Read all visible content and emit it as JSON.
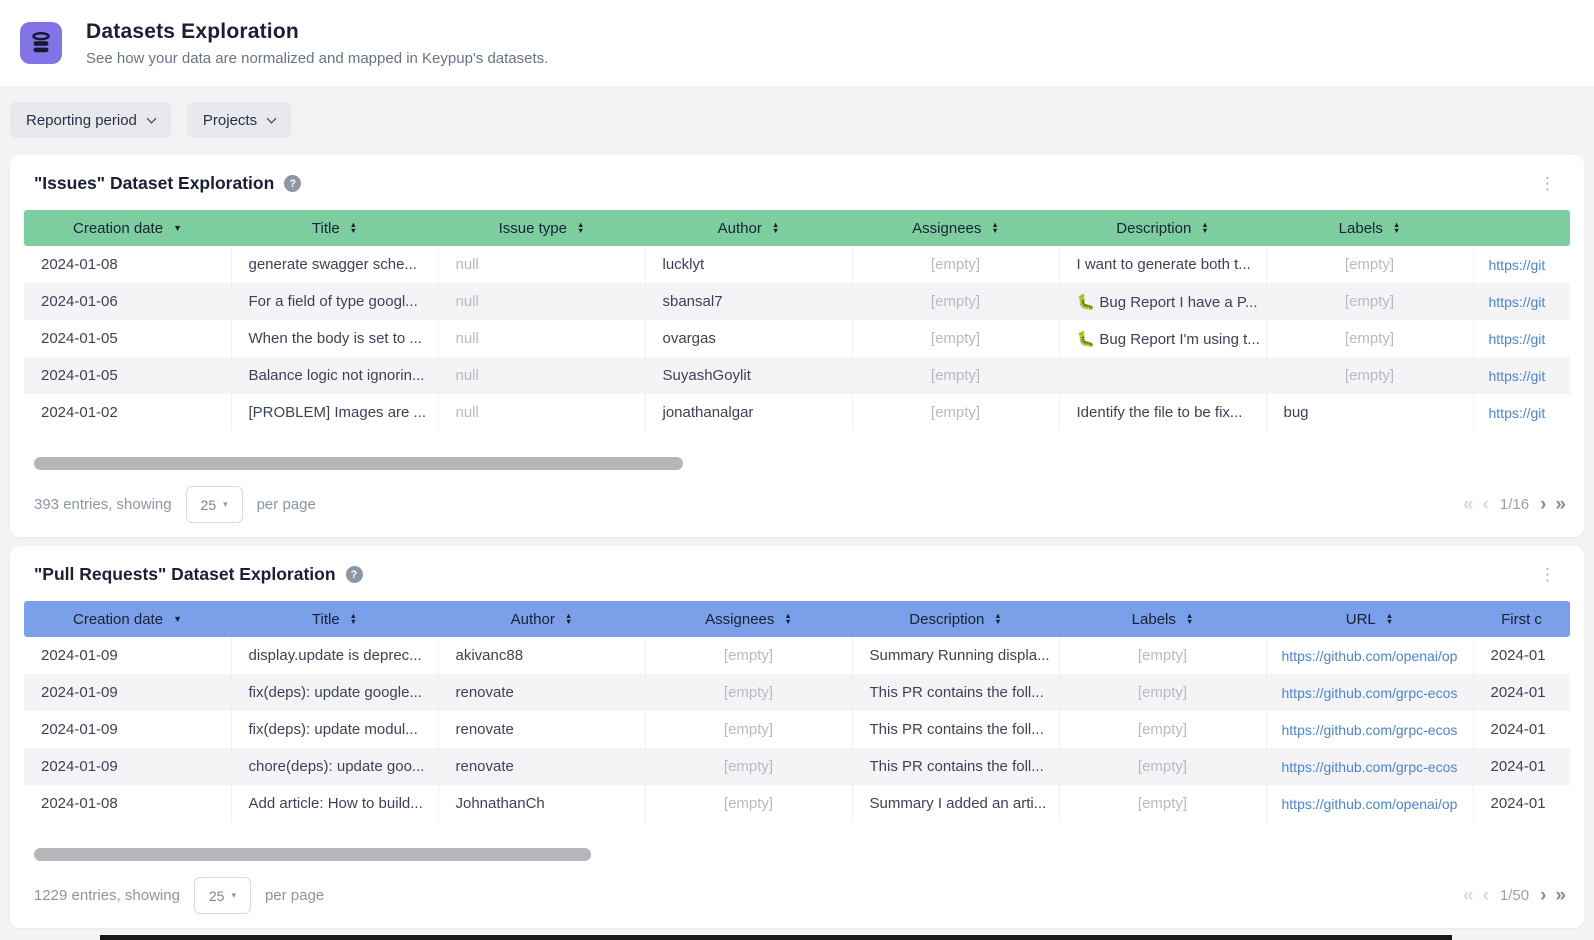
{
  "header": {
    "title": "Datasets Exploration",
    "subtitle": "See how your data are normalized and mapped in Keypup's datasets."
  },
  "filters": [
    {
      "label": "Reporting period"
    },
    {
      "label": "Projects"
    }
  ],
  "colors": {
    "app_icon_bg": "#8273e8",
    "issues_header": "#7dce9f",
    "pull_requests_header": "#7b9fe8",
    "link": "#4a84d8"
  },
  "icons": {
    "app": "database-icon",
    "help": "?",
    "kebab": "⋮",
    "caret_down": "▾",
    "sort_asc": "▲",
    "sort_desc": "▼",
    "first_page": "«",
    "prev_page": "‹",
    "next_page": "›",
    "last_page": "»"
  },
  "tables": [
    {
      "title": "\"Issues\" Dataset Exploration",
      "accent": "#7dce9f",
      "scrollbar_width_pct": 42.5,
      "columns": [
        {
          "label": "Creation date",
          "sort": "desc"
        },
        {
          "label": "Title",
          "sort": "both"
        },
        {
          "label": "Issue type",
          "sort": "both"
        },
        {
          "label": "Author",
          "sort": "both"
        },
        {
          "label": "Assignees",
          "sort": "both"
        },
        {
          "label": "Description",
          "sort": "both"
        },
        {
          "label": "Labels",
          "sort": "both"
        },
        {
          "label": "",
          "sort": "none"
        }
      ],
      "rows": [
        [
          {
            "text": "2024-01-08"
          },
          {
            "text": "generate swagger sche..."
          },
          {
            "text": "null",
            "muted": true
          },
          {
            "text": "lucklyt"
          },
          {
            "text": "[empty]",
            "muted": true,
            "center": true
          },
          {
            "text": "I want to generate both t..."
          },
          {
            "text": "[empty]",
            "muted": true,
            "center": true
          },
          {
            "text": "https://git",
            "link": true
          }
        ],
        [
          {
            "text": "2024-01-06"
          },
          {
            "text": "For a field of type googl..."
          },
          {
            "text": "null",
            "muted": true
          },
          {
            "text": "sbansal7"
          },
          {
            "text": "[empty]",
            "muted": true,
            "center": true
          },
          {
            "text": "🐛 Bug Report I have a P..."
          },
          {
            "text": "[empty]",
            "muted": true,
            "center": true
          },
          {
            "text": "https://git",
            "link": true
          }
        ],
        [
          {
            "text": "2024-01-05"
          },
          {
            "text": "When the body is set to ..."
          },
          {
            "text": "null",
            "muted": true
          },
          {
            "text": "ovargas"
          },
          {
            "text": "[empty]",
            "muted": true,
            "center": true
          },
          {
            "text": "🐛 Bug Report I'm using t..."
          },
          {
            "text": "[empty]",
            "muted": true,
            "center": true
          },
          {
            "text": "https://git",
            "link": true
          }
        ],
        [
          {
            "text": "2024-01-05"
          },
          {
            "text": "Balance logic not ignorin..."
          },
          {
            "text": "null",
            "muted": true
          },
          {
            "text": "SuyashGoylit"
          },
          {
            "text": "[empty]",
            "muted": true,
            "center": true
          },
          {
            "text": ""
          },
          {
            "text": "[empty]",
            "muted": true,
            "center": true
          },
          {
            "text": "https://git",
            "link": true
          }
        ],
        [
          {
            "text": "2024-01-02"
          },
          {
            "text": "[PROBLEM] Images are ..."
          },
          {
            "text": "null",
            "muted": true
          },
          {
            "text": "jonathanalgar"
          },
          {
            "text": "[empty]",
            "muted": true,
            "center": true
          },
          {
            "text": "Identify the file to be fix..."
          },
          {
            "text": "bug"
          },
          {
            "text": "https://git",
            "link": true
          }
        ]
      ],
      "footer": {
        "entries": "393 entries, showing",
        "page_size": "25",
        "suffix": "per page",
        "page_indicator": "1/16"
      }
    },
    {
      "title": "\"Pull Requests\" Dataset Exploration",
      "accent": "#7b9fe8",
      "scrollbar_width_pct": 36.5,
      "columns": [
        {
          "label": "Creation date",
          "sort": "desc"
        },
        {
          "label": "Title",
          "sort": "both"
        },
        {
          "label": "Author",
          "sort": "both"
        },
        {
          "label": "Assignees",
          "sort": "both"
        },
        {
          "label": "Description",
          "sort": "both"
        },
        {
          "label": "Labels",
          "sort": "both"
        },
        {
          "label": "URL",
          "sort": "both"
        },
        {
          "label": "First c",
          "sort": "none"
        }
      ],
      "rows": [
        [
          {
            "text": "2024-01-09"
          },
          {
            "text": "display.update is deprec..."
          },
          {
            "text": "akivanc88"
          },
          {
            "text": "[empty]",
            "muted": true,
            "center": true
          },
          {
            "text": "Summary Running displa..."
          },
          {
            "text": "[empty]",
            "muted": true,
            "center": true
          },
          {
            "text": "https://github.com/openai/op",
            "link": true
          },
          {
            "text": "2024-01"
          }
        ],
        [
          {
            "text": "2024-01-09"
          },
          {
            "text": "fix(deps): update google..."
          },
          {
            "text": "renovate"
          },
          {
            "text": "[empty]",
            "muted": true,
            "center": true
          },
          {
            "text": "This PR contains the foll..."
          },
          {
            "text": "[empty]",
            "muted": true,
            "center": true
          },
          {
            "text": "https://github.com/grpc-ecos",
            "link": true
          },
          {
            "text": "2024-01"
          }
        ],
        [
          {
            "text": "2024-01-09"
          },
          {
            "text": "fix(deps): update modul..."
          },
          {
            "text": "renovate"
          },
          {
            "text": "[empty]",
            "muted": true,
            "center": true
          },
          {
            "text": "This PR contains the foll..."
          },
          {
            "text": "[empty]",
            "muted": true,
            "center": true
          },
          {
            "text": "https://github.com/grpc-ecos",
            "link": true
          },
          {
            "text": "2024-01"
          }
        ],
        [
          {
            "text": "2024-01-09"
          },
          {
            "text": "chore(deps): update goo..."
          },
          {
            "text": "renovate"
          },
          {
            "text": "[empty]",
            "muted": true,
            "center": true
          },
          {
            "text": "This PR contains the foll..."
          },
          {
            "text": "[empty]",
            "muted": true,
            "center": true
          },
          {
            "text": "https://github.com/grpc-ecos",
            "link": true
          },
          {
            "text": "2024-01"
          }
        ],
        [
          {
            "text": "2024-01-08"
          },
          {
            "text": "Add article: How to build..."
          },
          {
            "text": "JohnathanCh"
          },
          {
            "text": "[empty]",
            "muted": true,
            "center": true
          },
          {
            "text": "Summary I added an arti..."
          },
          {
            "text": "[empty]",
            "muted": true,
            "center": true
          },
          {
            "text": "https://github.com/openai/op",
            "link": true
          },
          {
            "text": "2024-01"
          }
        ]
      ],
      "footer": {
        "entries": "1229 entries, showing",
        "page_size": "25",
        "suffix": "per page",
        "page_indicator": "1/50"
      }
    }
  ]
}
